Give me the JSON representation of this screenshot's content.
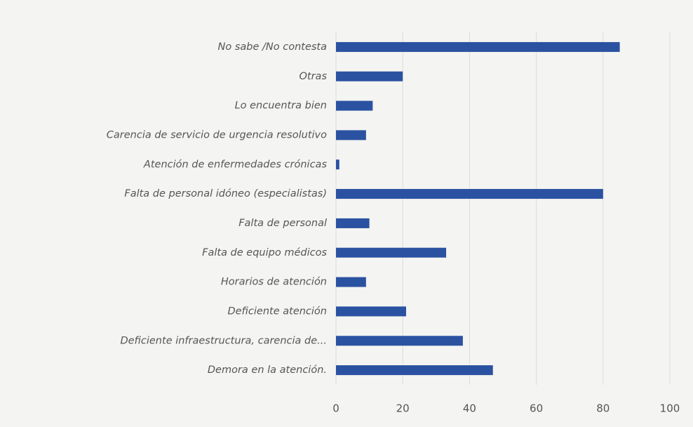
{
  "chart_data": {
    "type": "hbar",
    "categories": [
      "No sabe /No contesta",
      "Otras",
      "Lo encuentra bien",
      "Carencia de servicio de urgencia resolutivo",
      "Atención de enfermedades crónicas",
      "Falta de personal idóneo (especialistas)",
      "Falta de personal",
      "Falta de equipo médicos",
      "Horarios de atención",
      "Deficiente atención",
      "Deficiente infraestructura, carencia de...",
      "Demora en la atención."
    ],
    "values": [
      85,
      20,
      11,
      9,
      1,
      80,
      10,
      33,
      9,
      21,
      38,
      47
    ],
    "color": "#2b52a1",
    "xlim": [
      0,
      100
    ],
    "xticks": [
      0,
      20,
      40,
      60,
      80,
      100
    ],
    "grid": true
  }
}
